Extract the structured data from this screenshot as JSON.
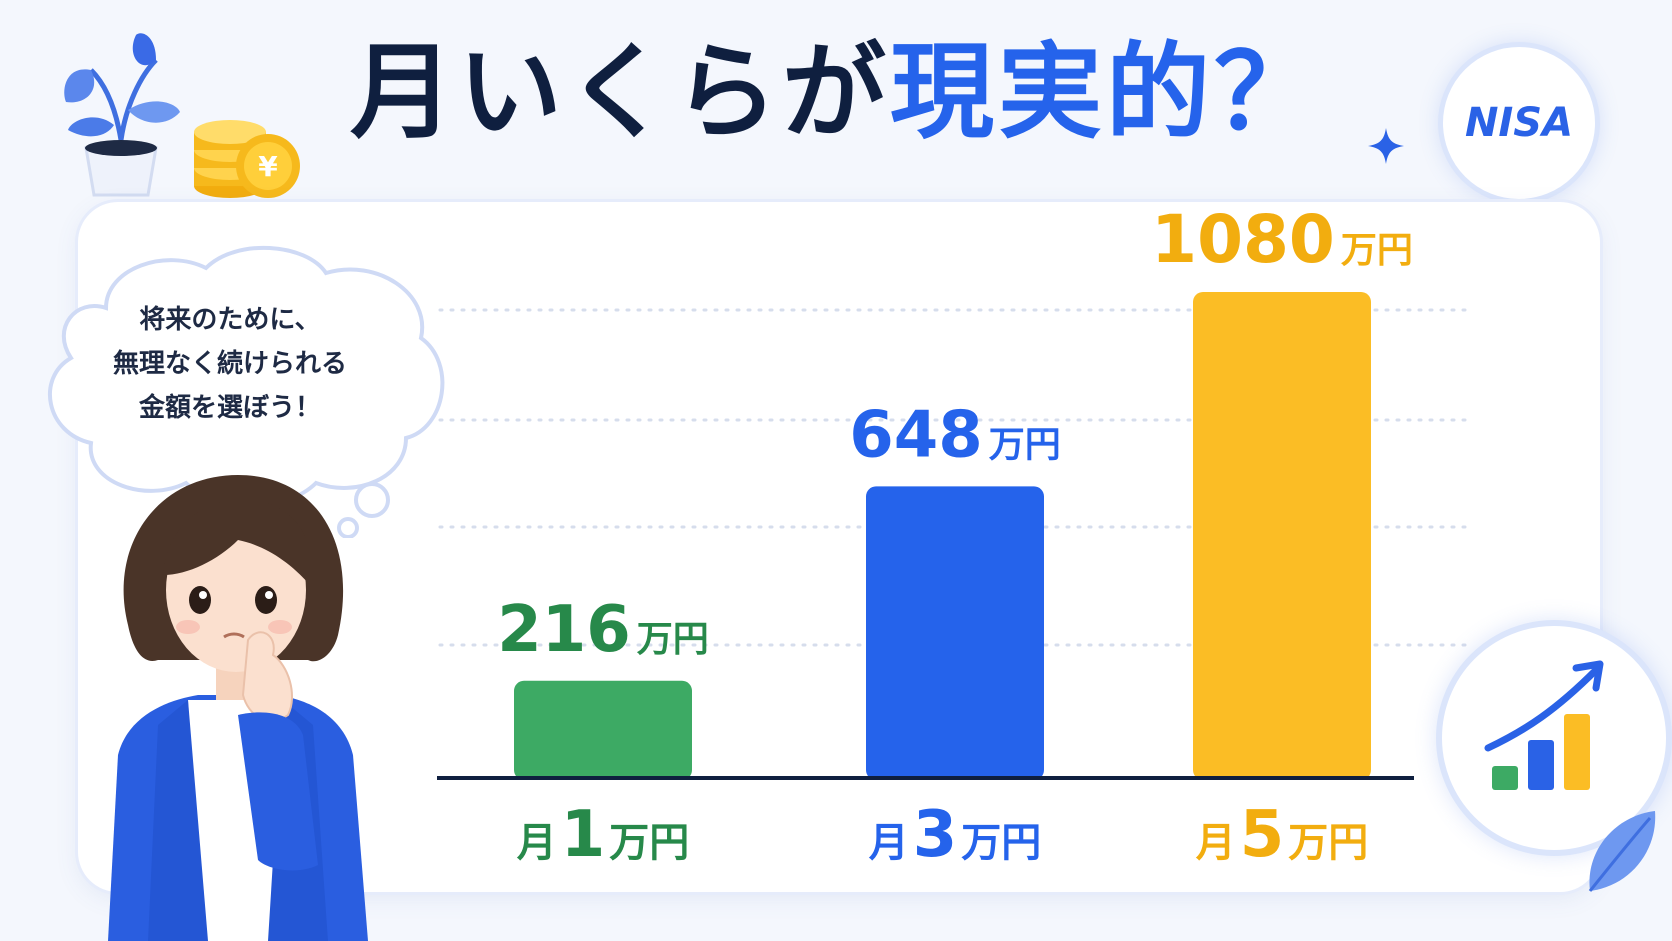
{
  "title": {
    "part1": "月いくらが",
    "part2": "現実的？"
  },
  "badge": "NISA",
  "thought_bubble": {
    "line1": "将来のために、",
    "line2": "無理なく続けられる",
    "line3": "金額を選ぼう！"
  },
  "colors": {
    "green": "#3daa64",
    "blue": "#2563eb",
    "yellow": "#fbbd25",
    "navy": "#0f1f3f",
    "value_green": "#27894a"
  },
  "chart_data": {
    "type": "bar",
    "categories": [
      "月1万円",
      "月3万円",
      "月5万円"
    ],
    "values": [
      216,
      648,
      1080
    ],
    "value_labels": [
      "216",
      "648",
      "1080"
    ],
    "unit": "万円",
    "category_parts": [
      {
        "prefix": "月",
        "num": "1",
        "suffix": "万円"
      },
      {
        "prefix": "月",
        "num": "3",
        "suffix": "万円"
      },
      {
        "prefix": "月",
        "num": "5",
        "suffix": "万円"
      }
    ],
    "bar_colors": [
      "#3daa64",
      "#2563eb",
      "#fbbd25"
    ],
    "label_colors": [
      "#27894a",
      "#2563eb",
      "#f2ad0f"
    ],
    "grid": true,
    "legend": "none",
    "ylim": [
      0,
      1200
    ],
    "title": "",
    "xlabel": "",
    "ylabel": ""
  }
}
